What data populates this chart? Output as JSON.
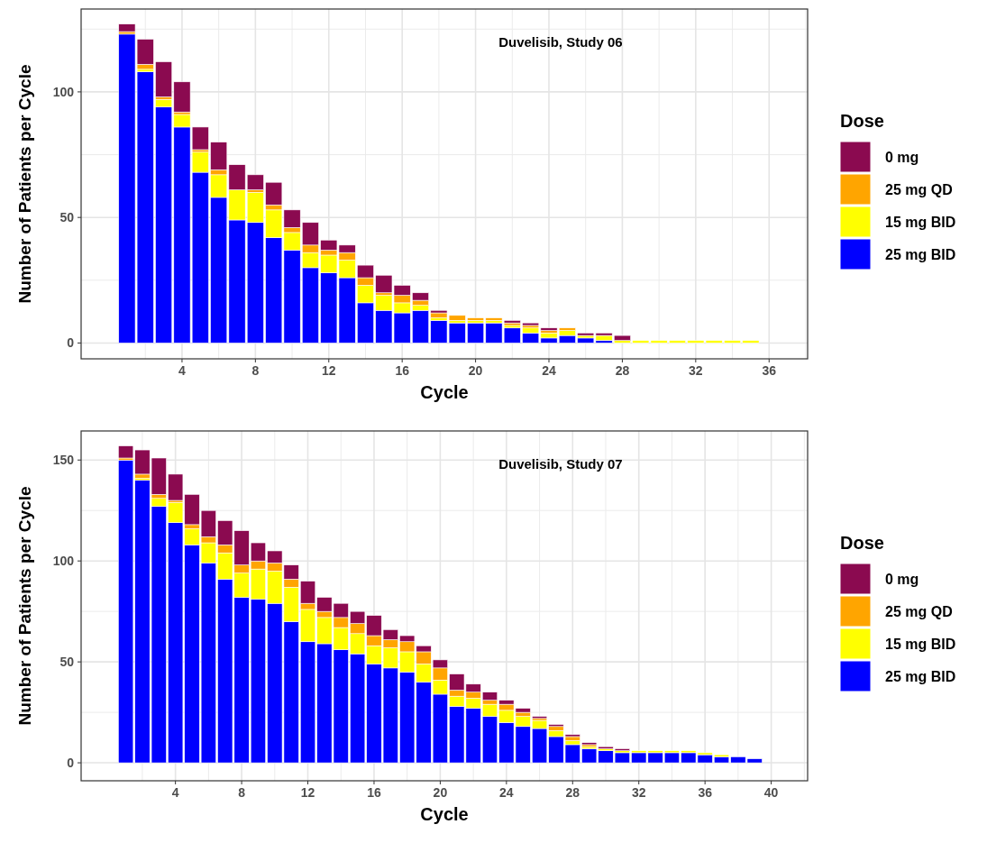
{
  "chart_data": [
    {
      "type": "bar",
      "title": "Duvelisib, Study 06",
      "xlabel": "Cycle",
      "ylabel": "Number of Patients per Cycle",
      "legend_title": "Dose",
      "legend": "right",
      "grid": true,
      "stacked": true,
      "x": [
        1,
        2,
        3,
        4,
        5,
        6,
        7,
        8,
        9,
        10,
        11,
        12,
        13,
        14,
        15,
        16,
        17,
        18,
        19,
        20,
        21,
        22,
        23,
        24,
        25,
        26,
        27,
        28,
        29,
        30,
        31,
        32,
        33,
        34,
        35
      ],
      "xlim": [
        -1.5,
        38.1
      ],
      "xticks": [
        4,
        8,
        12,
        16,
        20,
        24,
        28,
        32,
        36
      ],
      "ylim": [
        -6.3,
        133
      ],
      "yticks": [
        0,
        50,
        100
      ],
      "series": [
        {
          "name": "25 mg BID",
          "color": "#0000ff",
          "values": [
            123,
            108,
            94,
            86,
            68,
            58,
            49,
            48,
            42,
            37,
            30,
            28,
            26,
            16,
            13,
            12,
            13,
            9,
            8,
            8,
            8,
            6,
            4,
            2,
            3,
            2,
            1,
            0,
            0,
            0,
            0,
            0,
            0,
            0,
            0
          ]
        },
        {
          "name": "15 mg BID",
          "color": "#ffff00",
          "values": [
            0,
            1,
            3,
            5,
            8,
            9,
            12,
            12,
            11,
            7,
            6,
            7,
            7,
            7,
            6,
            4,
            2,
            1,
            1,
            1,
            1,
            1,
            2,
            2,
            2,
            1,
            2,
            1,
            1,
            1,
            1,
            1,
            1,
            1,
            1
          ]
        },
        {
          "name": "25 mg QD",
          "color": "#ffa500",
          "values": [
            1,
            2,
            1,
            1,
            1,
            2,
            0,
            1,
            2,
            2,
            3,
            2,
            3,
            3,
            1,
            3,
            2,
            2,
            2,
            1,
            1,
            1,
            1,
            1,
            1,
            0,
            0,
            0,
            0,
            0,
            0,
            0,
            0,
            0,
            0
          ]
        },
        {
          "name": "0 mg",
          "color": "#8b0a50",
          "values": [
            3,
            10,
            14,
            12,
            9,
            11,
            10,
            6,
            9,
            7,
            9,
            4,
            3,
            5,
            7,
            4,
            3,
            1,
            0,
            0,
            0,
            1,
            1,
            1,
            0,
            1,
            1,
            2,
            0,
            0,
            0,
            0,
            0,
            0,
            0
          ]
        }
      ]
    },
    {
      "type": "bar",
      "title": "Duvelisib, Study 07",
      "xlabel": "Cycle",
      "ylabel": "Number of Patients per Cycle",
      "legend_title": "Dose",
      "legend": "right",
      "grid": true,
      "stacked": true,
      "x": [
        1,
        2,
        3,
        4,
        5,
        6,
        7,
        8,
        9,
        10,
        11,
        12,
        13,
        14,
        15,
        16,
        17,
        18,
        19,
        20,
        21,
        22,
        23,
        24,
        25,
        26,
        27,
        28,
        29,
        30,
        31,
        32,
        33,
        34,
        35,
        36,
        37,
        38,
        39
      ],
      "xlim": [
        -1.7,
        42.2
      ],
      "xticks": [
        4,
        8,
        12,
        16,
        20,
        24,
        28,
        32,
        36,
        40
      ],
      "ylim": [
        -8.9,
        164.4
      ],
      "yticks": [
        0,
        50,
        100,
        150
      ],
      "series": [
        {
          "name": "25 mg BID",
          "color": "#0000ff",
          "values": [
            150,
            140,
            127,
            119,
            108,
            99,
            91,
            82,
            81,
            79,
            70,
            60,
            59,
            56,
            54,
            49,
            47,
            45,
            40,
            34,
            28,
            27,
            23,
            20,
            18,
            17,
            13,
            9,
            7,
            6,
            5,
            5,
            5,
            5,
            5,
            4,
            3,
            3,
            2
          ]
        },
        {
          "name": "15 mg BID",
          "color": "#ffff00",
          "values": [
            0,
            1,
            4,
            10,
            8,
            10,
            13,
            12,
            15,
            16,
            17,
            16,
            13,
            11,
            10,
            9,
            10,
            10,
            9,
            7,
            5,
            5,
            6,
            6,
            5,
            4,
            3,
            2,
            1,
            1,
            1,
            1,
            1,
            1,
            1,
            1,
            1,
            0,
            0
          ]
        },
        {
          "name": "25 mg QD",
          "color": "#ffa500",
          "values": [
            1,
            2,
            2,
            1,
            2,
            3,
            4,
            4,
            4,
            4,
            4,
            3,
            3,
            5,
            5,
            5,
            4,
            5,
            6,
            6,
            3,
            3,
            2,
            3,
            2,
            1,
            2,
            2,
            1,
            0,
            0,
            0,
            0,
            0,
            0,
            0,
            0,
            0,
            0
          ]
        },
        {
          "name": "0 mg",
          "color": "#8b0a50",
          "values": [
            6,
            12,
            18,
            13,
            15,
            13,
            12,
            17,
            9,
            6,
            7,
            11,
            7,
            7,
            6,
            10,
            5,
            3,
            3,
            4,
            8,
            4,
            4,
            2,
            2,
            1,
            1,
            1,
            1,
            1,
            1,
            0,
            0,
            0,
            0,
            0,
            0,
            0,
            0
          ]
        }
      ]
    }
  ]
}
